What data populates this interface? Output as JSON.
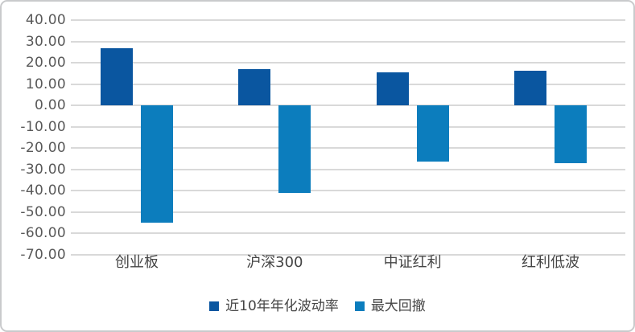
{
  "chart_data": {
    "type": "bar",
    "categories": [
      "创业板",
      "沪深300",
      "中证红利",
      "红利低波"
    ],
    "series": [
      {
        "name": "近10年年化波动率",
        "slug": "volatility",
        "color": "#0A56A0",
        "values": [
          26.7,
          17.0,
          15.6,
          16.2
        ]
      },
      {
        "name": "最大回撤",
        "slug": "drawdown",
        "color": "#0C7DBD",
        "values": [
          -55.2,
          -41.0,
          -26.5,
          -27.2
        ]
      }
    ],
    "title": "",
    "xlabel": "",
    "ylabel": "",
    "ylim": [
      -70,
      40
    ],
    "ytick_step": 10,
    "yticks": [
      "40.00",
      "30.00",
      "20.00",
      "10.00",
      "0.00",
      "-10.00",
      "-20.00",
      "-30.00",
      "-40.00",
      "-50.00",
      "-60.00",
      "-70.00"
    ],
    "grid": "horizontal",
    "legend_position": "bottom-center",
    "colors": {
      "gridline": "#D9D9D9",
      "tick_label": "#595959",
      "category_label": "#454545",
      "legend_label": "#454545",
      "background": "#FFFFFF",
      "card_border": "#C9CACC"
    }
  }
}
